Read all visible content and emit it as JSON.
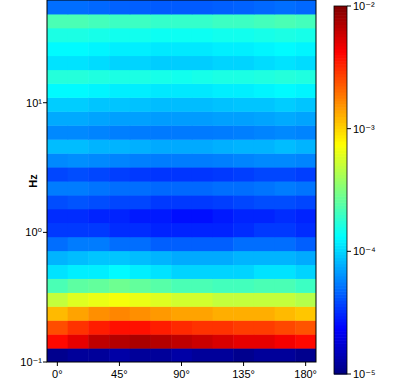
{
  "chart_data": {
    "type": "heatmap",
    "y_label": "Hz",
    "log": "y",
    "x": [
      0,
      15,
      30,
      45,
      60,
      75,
      90,
      105,
      120,
      135,
      150,
      165,
      180
    ],
    "y_edges": [
      0.1,
      0.128,
      0.164,
      0.21,
      0.269,
      0.344,
      0.441,
      0.565,
      0.723,
      0.926,
      1.19,
      1.52,
      1.94,
      2.49,
      3.19,
      4.08,
      5.23,
      6.7,
      8.58,
      11.0,
      14.1,
      18.0,
      23.1,
      29.5,
      37.8,
      48.4,
      62.0
    ],
    "xlim": [
      -7.5,
      187.5
    ],
    "ylim": [
      0.1,
      62.0
    ],
    "xticks": [
      {
        "value": 0,
        "label": "0°"
      },
      {
        "value": 45,
        "label": "45°"
      },
      {
        "value": 90,
        "label": "90°"
      },
      {
        "value": 135,
        "label": "135°"
      },
      {
        "value": 180,
        "label": "180°"
      }
    ],
    "yticks": [
      {
        "value": 0.1,
        "label": "10⁻¹"
      },
      {
        "value": 1,
        "label": "10⁰"
      },
      {
        "value": 10,
        "label": "10¹"
      }
    ],
    "color_range": [
      1e-05,
      0.01
    ],
    "color_ticks": [
      {
        "value": 1e-05,
        "label": "10⁻⁵"
      },
      {
        "value": 0.0001,
        "label": "10⁻⁴"
      },
      {
        "value": 0.001,
        "label": "10⁻³"
      },
      {
        "value": 0.01,
        "label": "10⁻²"
      }
    ],
    "cells": [
      [
        1.1e-05,
        1.2e-05,
        1.2e-05,
        1.3e-05,
        1.2e-05,
        1.2e-05,
        1.3e-05,
        1.2e-05,
        1.2e-05,
        1.1e-05,
        1.2e-05,
        1.2e-05,
        1.1e-05
      ],
      [
        0.004,
        0.005,
        0.0065,
        0.007,
        0.0075,
        0.007,
        0.0065,
        0.006,
        0.0055,
        0.005,
        0.005,
        0.0045,
        0.004
      ],
      [
        0.0025,
        0.003,
        0.0035,
        0.0038,
        0.0038,
        0.0035,
        0.0032,
        0.003,
        0.003,
        0.0028,
        0.0028,
        0.0026,
        0.0024
      ],
      [
        0.0012,
        0.0014,
        0.0016,
        0.0017,
        0.0016,
        0.0015,
        0.0014,
        0.0014,
        0.0013,
        0.0013,
        0.0013,
        0.0012,
        0.0011
      ],
      [
        0.0005,
        0.0006,
        0.00065,
        0.0007,
        0.00065,
        0.0006,
        0.00055,
        0.00055,
        0.0005,
        0.0005,
        0.0005,
        0.0005,
        0.00045
      ],
      [
        0.00022,
        0.00025,
        0.00026,
        0.00028,
        0.00026,
        0.00024,
        0.00022,
        0.00022,
        0.00021,
        0.00021,
        0.00022,
        0.00022,
        0.0002
      ],
      [
        0.00011,
        0.00012,
        0.00012,
        0.00013,
        0.00012,
        0.00011,
        0.0001,
        0.0001,
        0.0001,
        0.0001,
        0.00011,
        0.00011,
        0.0001
      ],
      [
        8e-05,
        8.5e-05,
        9e-05,
        9e-05,
        8.5e-05,
        8e-05,
        7.5e-05,
        7.5e-05,
        7.5e-05,
        8e-05,
        8e-05,
        8e-05,
        7.5e-05
      ],
      [
        5e-05,
        5.5e-05,
        5.5e-05,
        5e-05,
        5e-05,
        4.5e-05,
        4.5e-05,
        4.5e-05,
        4.5e-05,
        5e-05,
        5e-05,
        5e-05,
        4.5e-05
      ],
      [
        3.5e-05,
        3.5e-05,
        3.5e-05,
        3.2e-05,
        3.2e-05,
        3e-05,
        3e-05,
        3e-05,
        3e-05,
        3.2e-05,
        3.5e-05,
        3.5e-05,
        3.2e-05
      ],
      [
        3.2e-05,
        3.2e-05,
        3e-05,
        3e-05,
        2.8e-05,
        2.8e-05,
        2.6e-05,
        2.6e-05,
        2.8e-05,
        3e-05,
        3e-05,
        3.2e-05,
        3e-05
      ],
      [
        4e-05,
        4.2e-05,
        4e-05,
        3.8e-05,
        3.8e-05,
        3.5e-05,
        3.5e-05,
        3.5e-05,
        3.6e-05,
        3.8e-05,
        4e-05,
        4e-05,
        3.8e-05
      ],
      [
        5.5e-05,
        5.5e-05,
        5.2e-05,
        5e-05,
        5e-05,
        4.8e-05,
        4.8e-05,
        4.8e-05,
        5e-05,
        5e-05,
        5.2e-05,
        5.5e-05,
        5.2e-05
      ],
      [
        3.8e-05,
        4e-05,
        3.8e-05,
        3.6e-05,
        3.5e-05,
        3.4e-05,
        3.4e-05,
        3.4e-05,
        3.5e-05,
        3.6e-05,
        3.8e-05,
        3.8e-05,
        3.6e-05
      ],
      [
        6e-05,
        6.2e-05,
        6e-05,
        5.8e-05,
        5.6e-05,
        5.5e-05,
        5.5e-05,
        5.5e-05,
        5.6e-05,
        5.8e-05,
        6e-05,
        6e-05,
        5.8e-05
      ],
      [
        8.5e-05,
        8.5e-05,
        8e-05,
        8e-05,
        7.8e-05,
        7.5e-05,
        7.5e-05,
        7.5e-05,
        7.8e-05,
        8e-05,
        8e-05,
        8.5e-05,
        8e-05
      ],
      [
        6e-05,
        6e-05,
        5.8e-05,
        5.6e-05,
        5.5e-05,
        5.4e-05,
        5.4e-05,
        5.4e-05,
        5.5e-05,
        5.6e-05,
        5.8e-05,
        6e-05,
        5.8e-05
      ],
      [
        7.5e-05,
        7.5e-05,
        7.2e-05,
        7e-05,
        7e-05,
        6.8e-05,
        6.8e-05,
        6.8e-05,
        7e-05,
        7e-05,
        7.2e-05,
        7.5e-05,
        7.2e-05
      ],
      [
        9.5e-05,
        9.5e-05,
        9e-05,
        9e-05,
        8.8e-05,
        8.5e-05,
        8.5e-05,
        8.5e-05,
        8.8e-05,
        9e-05,
        9e-05,
        9.5e-05,
        9e-05
      ],
      [
        0.00013,
        0.00013,
        0.000125,
        0.00012,
        0.00012,
        0.000115,
        0.000115,
        0.000115,
        0.00012,
        0.00012,
        0.000125,
        0.00013,
        0.000125
      ],
      [
        0.00017,
        0.00017,
        0.000165,
        0.00016,
        0.00016,
        0.000155,
        0.00015,
        0.000155,
        0.00016,
        0.00016,
        0.000165,
        0.00017,
        0.000165
      ],
      [
        0.00011,
        0.00011,
        0.000105,
        0.0001,
        0.0001,
        9.5e-05,
        9.5e-05,
        9.5e-05,
        0.0001,
        0.0001,
        0.000105,
        0.00011,
        0.000105
      ],
      [
        0.00013,
        0.00013,
        0.000125,
        0.00012,
        0.00012,
        0.000115,
        0.000115,
        0.000115,
        0.00012,
        0.00012,
        0.000125,
        0.00013,
        0.000125
      ],
      [
        0.00016,
        0.00016,
        0.000155,
        0.00015,
        0.00015,
        0.000145,
        0.000145,
        0.000145,
        0.00015,
        0.00015,
        0.000155,
        0.00016,
        0.000155
      ],
      [
        0.00022,
        0.00022,
        0.00021,
        0.0002,
        0.0002,
        0.00019,
        0.00019,
        0.00019,
        0.0002,
        0.0002,
        0.00021,
        0.00022,
        0.00021
      ],
      [
        5e-05,
        5e-05,
        4.8e-05,
        4.6e-05,
        4.5e-05,
        4.4e-05,
        4.4e-05,
        4.4e-05,
        4.5e-05,
        4.6e-05,
        4.8e-05,
        5e-05,
        4.8e-05
      ]
    ]
  }
}
